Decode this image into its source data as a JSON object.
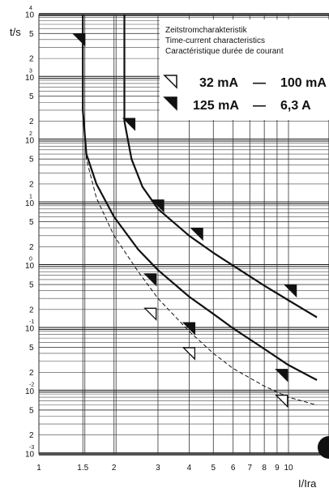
{
  "chart_data": {
    "type": "line",
    "title_lines": [
      "Zeitstromcharakteristik",
      "Time-current characteristics",
      "Caractéristique durée de courant"
    ],
    "ylabel": "t/s",
    "xlabel": "I/Ira",
    "x_scale": "log",
    "y_scale": "log",
    "xlim": [
      1,
      10
    ],
    "ylim": [
      0.001,
      10000
    ],
    "x_ticks": [
      1,
      1.5,
      2,
      3,
      4,
      5,
      6,
      7,
      8,
      9,
      10
    ],
    "x_tick_labels": [
      "1",
      "1.5",
      "2",
      "3",
      "4",
      "5",
      "6",
      "7",
      "8",
      "9",
      "10"
    ],
    "y_decades": [
      {
        "value": 10000,
        "mantissa": "10",
        "exp": "4"
      },
      {
        "value": 1000,
        "mantissa": "10",
        "exp": "3"
      },
      {
        "value": 100,
        "mantissa": "10",
        "exp": "2"
      },
      {
        "value": 10,
        "mantissa": "10",
        "exp": "1"
      },
      {
        "value": 1,
        "mantissa": "10",
        "exp": "0"
      },
      {
        "value": 0.1,
        "mantissa": "10",
        "exp": "-1"
      },
      {
        "value": 0.01,
        "mantissa": "10",
        "exp": "-2"
      },
      {
        "value": 0.001,
        "mantissa": "10",
        "exp": "-3"
      }
    ],
    "y_minor_labels": [
      "5",
      "2"
    ],
    "grid": true,
    "legend": {
      "placement": "top-right",
      "entries": [
        {
          "marker": "open-triangle",
          "from": "32 mA",
          "dash": "—",
          "to": "100 mA"
        },
        {
          "marker": "filled-triangle",
          "from": "125 mA",
          "dash": "—",
          "to": "6,3 A"
        }
      ]
    },
    "series": [
      {
        "style": "solid",
        "points": [
          [
            1.5,
            10000
          ],
          [
            1.5,
            300
          ],
          [
            1.55,
            60
          ],
          [
            1.7,
            20
          ],
          [
            2.0,
            6
          ],
          [
            2.5,
            1.8
          ],
          [
            3.0,
            0.85
          ],
          [
            4.0,
            0.32
          ],
          [
            5.0,
            0.17
          ],
          [
            6.0,
            0.1
          ],
          [
            8.0,
            0.047
          ],
          [
            10.0,
            0.026
          ],
          [
            13.0,
            0.015
          ]
        ]
      },
      {
        "style": "dashed",
        "points": [
          [
            1.5,
            300
          ],
          [
            1.55,
            50
          ],
          [
            1.7,
            12
          ],
          [
            2.0,
            3
          ],
          [
            2.5,
            0.8
          ],
          [
            3.0,
            0.3
          ],
          [
            4.0,
            0.09
          ],
          [
            5.0,
            0.04
          ],
          [
            6.0,
            0.023
          ],
          [
            8.0,
            0.012
          ],
          [
            10.0,
            0.008
          ],
          [
            13.0,
            0.006
          ]
        ]
      },
      {
        "style": "solid",
        "points": [
          [
            2.2,
            10000
          ],
          [
            2.2,
            200
          ],
          [
            2.35,
            50
          ],
          [
            2.6,
            18
          ],
          [
            3.0,
            8
          ],
          [
            4.0,
            3
          ],
          [
            5.0,
            1.6
          ],
          [
            6.0,
            1.0
          ],
          [
            8.0,
            0.48
          ],
          [
            10.0,
            0.28
          ],
          [
            13.0,
            0.15
          ]
        ]
      }
    ],
    "markers": [
      {
        "type": "filled",
        "x": 1.45,
        "y": 4000
      },
      {
        "type": "filled",
        "x": 2.3,
        "y": 180
      },
      {
        "type": "filled",
        "x": 3.0,
        "y": 9
      },
      {
        "type": "filled",
        "x": 4.3,
        "y": 3.2
      },
      {
        "type": "filled",
        "x": 10.2,
        "y": 0.4
      },
      {
        "type": "filled",
        "x": 2.8,
        "y": 0.6
      },
      {
        "type": "filled",
        "x": 4.0,
        "y": 0.1
      },
      {
        "type": "filled",
        "x": 9.4,
        "y": 0.018
      },
      {
        "type": "open",
        "x": 2.8,
        "y": 0.17
      },
      {
        "type": "open",
        "x": 4.0,
        "y": 0.04
      },
      {
        "type": "open",
        "x": 9.4,
        "y": 0.007
      }
    ]
  }
}
